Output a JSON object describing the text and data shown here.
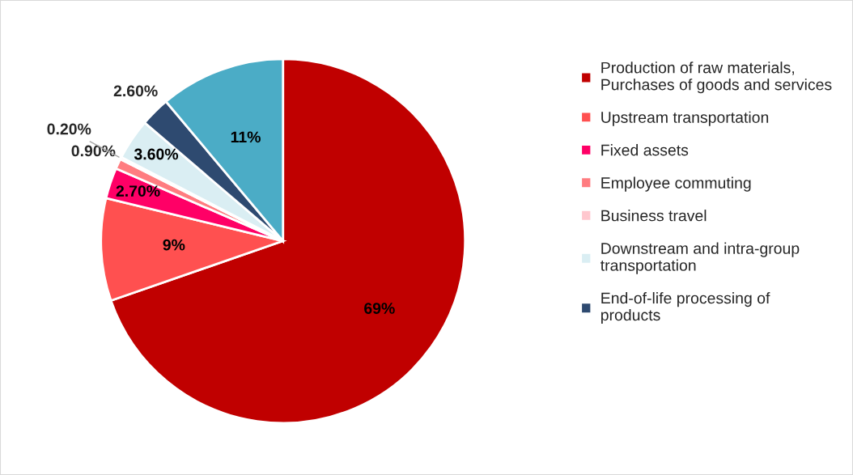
{
  "chart_data": {
    "type": "pie",
    "categories": [
      "Production of raw materials,\nPurchases of goods and services",
      "Upstream transportation",
      "Fixed assets",
      "Employee commuting",
      "Business travel",
      "Downstream and intra-group\ntransportation",
      "End-of-life processing of\nproducts",
      null
    ],
    "values": [
      69,
      9,
      2.7,
      0.9,
      0.2,
      3.6,
      2.6,
      11
    ],
    "value_labels": [
      "69%",
      "9%",
      "2.70%",
      "0.90%",
      "0.20%",
      "3.60%",
      "2.60%",
      "11%"
    ],
    "colors": [
      "#c00000",
      "#ff5050",
      "#ff0066",
      "#ff7c80",
      "#ffc7ce",
      "#daeef3",
      "#2e4a70",
      "#4bacc6"
    ],
    "legend": "right"
  }
}
